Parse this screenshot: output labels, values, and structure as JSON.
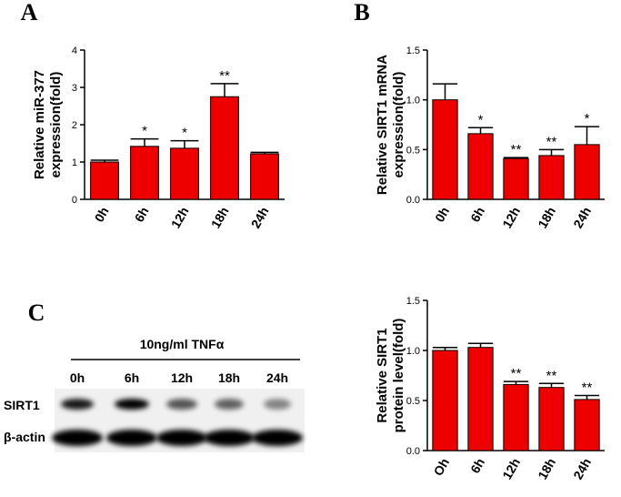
{
  "panel_labels": [
    "A",
    "B",
    "C"
  ],
  "blot": {
    "treatment": "10ng/ml TNFα",
    "lanes": [
      "0h",
      "6h",
      "12h",
      "18h",
      "24h"
    ],
    "rows": [
      "SIRT1",
      "β-actin"
    ]
  },
  "chart_data": [
    {
      "type": "bar",
      "ylabel": [
        "Relative miR-377",
        "expression(fold)"
      ],
      "color": "#ee0000",
      "categories": [
        "0h",
        "6h",
        "12h",
        "18h",
        "24h"
      ],
      "values": [
        1.0,
        1.42,
        1.37,
        2.75,
        1.22
      ],
      "errors": [
        0.05,
        0.2,
        0.2,
        0.35,
        0.04
      ],
      "annotations": [
        null,
        "*",
        "*",
        "**",
        null
      ],
      "ylim": [
        0,
        4
      ],
      "yticks": [
        0,
        1,
        2,
        3,
        4
      ]
    },
    {
      "type": "bar",
      "ylabel": [
        "Relative SIRT1 mRNA",
        "expression(fold)"
      ],
      "color": "#ee0000",
      "categories": [
        "0h",
        "6h",
        "12h",
        "18h",
        "24h"
      ],
      "values": [
        1.0,
        0.66,
        0.41,
        0.44,
        0.55
      ],
      "errors": [
        0.16,
        0.06,
        0.01,
        0.06,
        0.18
      ],
      "annotations": [
        null,
        "*",
        "**",
        "**",
        "*"
      ],
      "ylim": [
        0,
        1.5
      ],
      "yticks": [
        {
          "value": 0,
          "label": "0.0"
        },
        0.5,
        {
          "value": 1,
          "label": "1.0"
        },
        1.5
      ]
    },
    {
      "type": "bar",
      "ylabel": [
        "Relative SIRT1",
        "protein level(fold)"
      ],
      "color": "#ee0000",
      "categories": [
        "Oh",
        "6h",
        "12h",
        "18h",
        "24h"
      ],
      "values": [
        1.0,
        1.03,
        0.66,
        0.63,
        0.51
      ],
      "errors": [
        0.03,
        0.04,
        0.03,
        0.04,
        0.04
      ],
      "annotations": [
        null,
        null,
        "**",
        "**",
        "**"
      ],
      "ylim": [
        0,
        1.5
      ],
      "yticks": [
        {
          "value": 0,
          "label": "0.0"
        },
        0.5,
        {
          "value": 1,
          "label": "1.0"
        },
        1.5
      ]
    }
  ]
}
